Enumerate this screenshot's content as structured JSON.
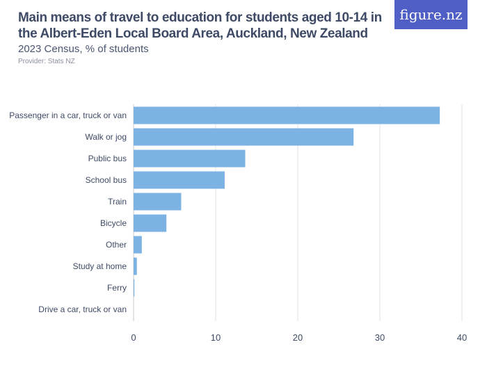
{
  "logo": "figure.nz",
  "header": {
    "title": "Main means of travel to education for students aged 10-14 in the Albert-Eden Local Board Area, Auckland, New Zealand",
    "subtitle": "2023 Census, % of students",
    "provider": "Provider: Stats NZ"
  },
  "chart_data": {
    "type": "bar",
    "orientation": "horizontal",
    "categories": [
      "Passenger in a car, truck or van",
      "Walk or jog",
      "Public bus",
      "School bus",
      "Train",
      "Bicycle",
      "Other",
      "Study at home",
      "Ferry",
      "Drive a car, truck or van"
    ],
    "values": [
      37.3,
      26.8,
      13.6,
      11.1,
      5.8,
      4.0,
      1.0,
      0.4,
      0.1,
      0
    ],
    "xlim": [
      0,
      40
    ],
    "xticks": [
      0,
      10,
      20,
      30,
      40
    ],
    "grid": true,
    "bar_color": "#7db3e3"
  }
}
